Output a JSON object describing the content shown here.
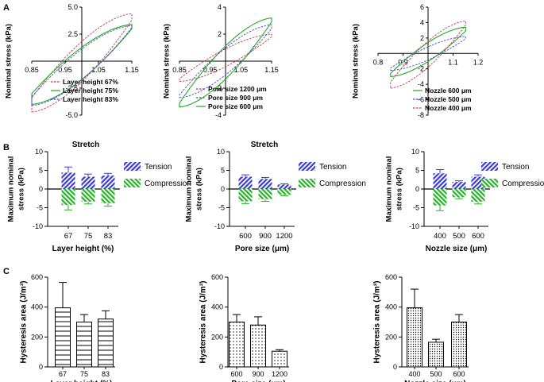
{
  "panels": {
    "A": "A",
    "B": "B",
    "C": "C"
  },
  "colors": {
    "tension": "#3a3ad6",
    "compression": "#22b322",
    "red": "#cc3355",
    "blue": "#4a4ad0",
    "green": "#22aa22",
    "axis": "#000000"
  },
  "chart_data": [
    {
      "id": "a1",
      "type": "line",
      "panel": "A",
      "title": "",
      "xlabel": "",
      "ylabel": "Nominal stress (kPa)",
      "xlim": [
        0.85,
        1.15
      ],
      "ylim": [
        -5,
        5
      ],
      "xticks": [
        0.85,
        0.95,
        1.05,
        1.15
      ],
      "xtick_labels": [
        "0.85",
        "0.95",
        "1.05",
        "1.15"
      ],
      "yticks": [
        -5,
        -2.5,
        2.5,
        5
      ],
      "ytick_labels": [
        "-5.0",
        "-2.5",
        "2.5",
        "5.0"
      ],
      "axis_style": "centered",
      "legend_position": "bottom-right",
      "series": [
        {
          "name": "Layer height 67%",
          "color": "#cc3355",
          "dash": "dashed",
          "x0": 0.85,
          "x1": 1.15,
          "low_start": -4.7,
          "low_end": 3.8,
          "up_end": 4.4,
          "up_start": -3.4
        },
        {
          "name": "Layer height 75%",
          "color": "#22aa22",
          "dash": "solid",
          "x0": 0.85,
          "x1": 1.15,
          "low_start": -4.0,
          "low_end": 3.0,
          "up_end": 3.4,
          "up_start": -3.0
        },
        {
          "name": "Layer height 83%",
          "color": "#4a4ad0",
          "dash": "dashed",
          "x0": 0.85,
          "x1": 1.15,
          "low_start": -4.1,
          "low_end": 3.1,
          "up_end": 3.3,
          "up_start": -3.3
        }
      ]
    },
    {
      "id": "a2",
      "type": "line",
      "panel": "A",
      "title": "",
      "xlabel": "",
      "ylabel": "Nominal stress (kPa)",
      "xlim": [
        0.85,
        1.15
      ],
      "ylim": [
        -4,
        4
      ],
      "xticks": [
        0.85,
        0.95,
        1.05,
        1.15
      ],
      "xtick_labels": [
        "0.85",
        "0.95",
        "1.05",
        "1.15"
      ],
      "yticks": [
        -4,
        -2,
        2,
        4
      ],
      "ytick_labels": [
        "-4",
        "-2",
        "2",
        "4"
      ],
      "axis_style": "centered",
      "legend_position": "bottom-right",
      "series": [
        {
          "name": "Pore size 1200 μm",
          "color": "#cc3355",
          "dash": "dashed",
          "x0": 0.85,
          "x1": 1.15,
          "low_start": -1.5,
          "low_end": 1.8,
          "up_end": 2.0,
          "up_start": -1.3
        },
        {
          "name": "Pore size 900 μm",
          "color": "#4a4ad0",
          "dash": "dashed",
          "x0": 0.85,
          "x1": 1.15,
          "low_start": -2.7,
          "low_end": 2.4,
          "up_end": 2.7,
          "up_start": -2.5
        },
        {
          "name": "Pore size 600 μm",
          "color": "#22aa22",
          "dash": "solid",
          "x0": 0.85,
          "x1": 1.15,
          "low_start": -3.4,
          "low_end": 2.9,
          "up_end": 3.2,
          "up_start": -3.1
        }
      ]
    },
    {
      "id": "a3",
      "type": "line",
      "panel": "A",
      "title": "",
      "xlabel": "",
      "ylabel": "Nominal stress (kPa)",
      "xlim": [
        0.8,
        1.2
      ],
      "ylim": [
        -8,
        6
      ],
      "xticks": [
        0.8,
        0.9,
        1.1,
        1.2
      ],
      "xtick_labels": [
        "0.8",
        "0.9",
        "1.1",
        "1.2"
      ],
      "yticks": [
        -8,
        -6,
        -4,
        -2,
        2,
        4,
        6
      ],
      "ytick_labels": [
        "-8",
        "-6",
        "-4",
        "-2",
        "2",
        "4",
        "6"
      ],
      "axis_style": "centered",
      "legend_position": "bottom-right",
      "series": [
        {
          "name": "Nozzle 600 μm",
          "color": "#22aa22",
          "dash": "solid",
          "x0": 0.85,
          "x1": 1.15,
          "low_start": -3.0,
          "low_end": 2.9,
          "up_end": 3.4,
          "up_start": -2.6
        },
        {
          "name": "Nozzle 500 μm",
          "color": "#4a4ad0",
          "dash": "dashed",
          "x0": 0.85,
          "x1": 1.15,
          "low_start": -2.2,
          "low_end": 1.9,
          "up_end": 2.2,
          "up_start": -1.9
        },
        {
          "name": "Nozzle 400 μm",
          "color": "#cc3355",
          "dash": "dashed",
          "x0": 0.85,
          "x1": 1.15,
          "low_start": -4.5,
          "low_end": 3.7,
          "up_end": 4.2,
          "up_start": -3.7
        }
      ]
    },
    {
      "id": "b1",
      "type": "bar",
      "panel": "B",
      "title": "Stretch",
      "xlabel": "Layer height (%)",
      "ylabel": "Maximum nominal stress (kPa)",
      "ylim": [
        -10,
        10
      ],
      "yticks": [
        -10,
        -5,
        0,
        5,
        10
      ],
      "ytick_labels": [
        "-10",
        "-5",
        "0",
        "5",
        "10"
      ],
      "categories": [
        "67",
        "75",
        "83"
      ],
      "series": [
        {
          "name": "Tension",
          "values": [
            4.4,
            3.3,
            3.6
          ],
          "errors": [
            1.5,
            0.7,
            0.6
          ]
        },
        {
          "name": "Compression",
          "values": [
            -4.3,
            -3.4,
            -3.8
          ],
          "errors": [
            1.3,
            0.6,
            0.8
          ]
        }
      ],
      "legend_position": "right"
    },
    {
      "id": "b2",
      "type": "bar",
      "panel": "B",
      "title": "Stretch",
      "xlabel": "Pore size (μm)",
      "ylabel": "Maximum nominal stress (kPa)",
      "ylim": [
        -10,
        10
      ],
      "yticks": [
        -10,
        -5,
        0,
        5,
        10
      ],
      "ytick_labels": [
        "-10",
        "-5",
        "0",
        "5",
        "10"
      ],
      "categories": [
        "600",
        "900",
        "1200"
      ],
      "series": [
        {
          "name": "Tension",
          "values": [
            3.3,
            2.7,
            1.2
          ],
          "errors": [
            0.5,
            0.4,
            0.2
          ]
        },
        {
          "name": "Compression",
          "values": [
            -3.3,
            -2.7,
            -1.5
          ],
          "errors": [
            0.6,
            0.6,
            0.3
          ]
        }
      ],
      "legend_position": "right"
    },
    {
      "id": "b3",
      "type": "bar",
      "panel": "B",
      "title": "",
      "xlabel": "Nozzle size (μm)",
      "ylabel": "Maximum nominal stress (kPa)",
      "ylim": [
        -10,
        10
      ],
      "yticks": [
        -10,
        -5,
        0,
        5,
        10
      ],
      "ytick_labels": [
        "-10",
        "-5",
        "0",
        "5",
        "10"
      ],
      "categories": [
        "400",
        "500",
        "600"
      ],
      "series": [
        {
          "name": "Tension",
          "values": [
            4.2,
            1.9,
            3.3
          ],
          "errors": [
            1.0,
            0.3,
            0.5
          ]
        },
        {
          "name": "Compression",
          "values": [
            -4.4,
            -2.2,
            -3.4
          ],
          "errors": [
            1.4,
            0.4,
            0.6
          ]
        }
      ],
      "legend_position": "right"
    },
    {
      "id": "c1",
      "type": "bar",
      "panel": "C",
      "title": "",
      "xlabel": "Layer height (%)",
      "ylabel": "Hysteresis area (J/m³)",
      "ylim": [
        0,
        600
      ],
      "yticks": [
        0,
        200,
        400,
        600
      ],
      "ytick_labels": [
        "0",
        "200",
        "400",
        "600"
      ],
      "categories": [
        "67",
        "75",
        "83"
      ],
      "values": [
        395,
        300,
        320
      ],
      "errors": [
        170,
        50,
        55
      ],
      "pattern": "horizontal-lines"
    },
    {
      "id": "c2",
      "type": "bar",
      "panel": "C",
      "title": "",
      "xlabel": "Pore size (μm)",
      "ylabel": "Hysteresis area (J/m³)",
      "ylim": [
        0,
        600
      ],
      "yticks": [
        0,
        200,
        400,
        600
      ],
      "ytick_labels": [
        "0",
        "200",
        "400",
        "600"
      ],
      "categories": [
        "600",
        "900",
        "1200"
      ],
      "values": [
        300,
        280,
        105
      ],
      "errors": [
        50,
        55,
        10
      ],
      "pattern": "dots"
    },
    {
      "id": "c3",
      "type": "bar",
      "panel": "C",
      "title": "",
      "xlabel": "Nozzle size (μm)",
      "ylabel": "Hysteresis area (J/m³)",
      "ylim": [
        0,
        600
      ],
      "yticks": [
        0,
        200,
        400,
        600
      ],
      "ytick_labels": [
        "0",
        "200",
        "400",
        "600"
      ],
      "categories": [
        "400",
        "500",
        "600"
      ],
      "values": [
        395,
        165,
        300
      ],
      "errors": [
        125,
        20,
        50
      ],
      "pattern": "dots-dense"
    }
  ]
}
